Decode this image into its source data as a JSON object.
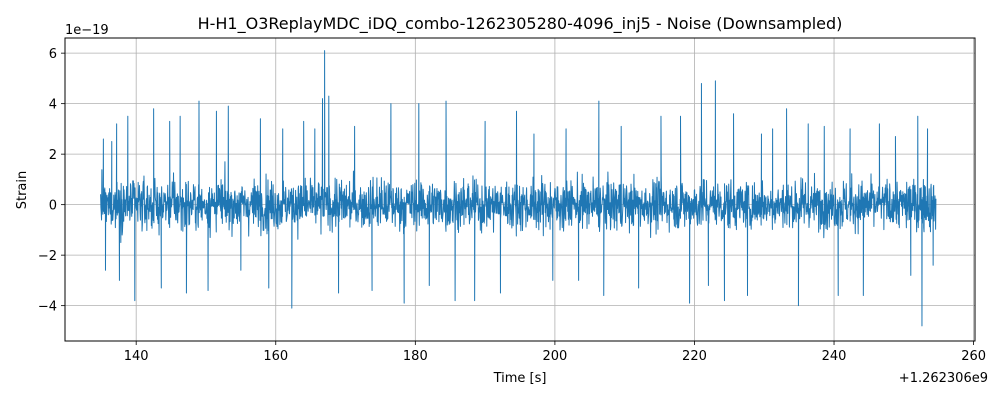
{
  "chart_data": {
    "type": "line",
    "title": "H-H1_O3ReplayMDC_iDQ_combo-1262305280-4096_inj5 - Noise (Downsampled)",
    "xlabel": "Time [s]",
    "ylabel": "Strain",
    "x_offset_label": "+1.262306e9",
    "y_scale_label": "1e−19",
    "xlim": [
      129.8,
      260.2
    ],
    "ylim": [
      -5.4,
      6.6
    ],
    "x_ticks": [
      140,
      160,
      180,
      200,
      220,
      240,
      260
    ],
    "x_tick_labels": [
      "140",
      "160",
      "180",
      "200",
      "220",
      "240",
      "260"
    ],
    "y_ticks": [
      -4,
      -2,
      0,
      2,
      4,
      6
    ],
    "y_tick_labels": [
      "−4",
      "−2",
      "0",
      "2",
      "4",
      "6"
    ],
    "grid": true,
    "series": [
      {
        "color": "#1f77b4",
        "x_start": 134.9,
        "x_end": 254.6,
        "typical_envelope": 1.5,
        "spikes": [
          {
            "x": 135.3,
            "y": 2.6
          },
          {
            "x": 135.6,
            "y": -2.6
          },
          {
            "x": 136.5,
            "y": 2.5
          },
          {
            "x": 137.2,
            "y": 3.2
          },
          {
            "x": 137.6,
            "y": -3.0
          },
          {
            "x": 138.8,
            "y": 3.5
          },
          {
            "x": 139.8,
            "y": -3.8
          },
          {
            "x": 142.5,
            "y": 3.8
          },
          {
            "x": 143.6,
            "y": -3.3
          },
          {
            "x": 144.8,
            "y": 3.3
          },
          {
            "x": 146.3,
            "y": 3.5
          },
          {
            "x": 147.2,
            "y": -3.5
          },
          {
            "x": 149.0,
            "y": 4.1
          },
          {
            "x": 150.3,
            "y": -3.4
          },
          {
            "x": 151.5,
            "y": 3.7
          },
          {
            "x": 153.2,
            "y": 3.9
          },
          {
            "x": 155.0,
            "y": -2.6
          },
          {
            "x": 157.8,
            "y": 3.4
          },
          {
            "x": 159.0,
            "y": -3.3
          },
          {
            "x": 161.0,
            "y": 3.0
          },
          {
            "x": 162.3,
            "y": -4.1
          },
          {
            "x": 164.0,
            "y": 3.3
          },
          {
            "x": 165.6,
            "y": 3.0
          },
          {
            "x": 166.7,
            "y": 4.2
          },
          {
            "x": 167.0,
            "y": 6.1
          },
          {
            "x": 167.6,
            "y": 4.3
          },
          {
            "x": 169.0,
            "y": -3.5
          },
          {
            "x": 171.3,
            "y": 3.1
          },
          {
            "x": 173.8,
            "y": -3.4
          },
          {
            "x": 176.5,
            "y": 4.0
          },
          {
            "x": 178.4,
            "y": -3.9
          },
          {
            "x": 180.5,
            "y": 4.0
          },
          {
            "x": 182.0,
            "y": -3.2
          },
          {
            "x": 184.4,
            "y": 4.1
          },
          {
            "x": 185.7,
            "y": -3.8
          },
          {
            "x": 188.5,
            "y": -3.8
          },
          {
            "x": 190.0,
            "y": 3.3
          },
          {
            "x": 192.2,
            "y": -3.5
          },
          {
            "x": 194.5,
            "y": 3.7
          },
          {
            "x": 197.0,
            "y": 2.8
          },
          {
            "x": 199.7,
            "y": -3.0
          },
          {
            "x": 201.6,
            "y": 3.0
          },
          {
            "x": 203.4,
            "y": -3.0
          },
          {
            "x": 206.3,
            "y": 4.1
          },
          {
            "x": 207.0,
            "y": -3.6
          },
          {
            "x": 209.5,
            "y": 3.1
          },
          {
            "x": 212.0,
            "y": -3.3
          },
          {
            "x": 215.2,
            "y": 3.5
          },
          {
            "x": 218.0,
            "y": 3.5
          },
          {
            "x": 219.3,
            "y": -3.9
          },
          {
            "x": 221.0,
            "y": 4.8
          },
          {
            "x": 222.0,
            "y": -3.2
          },
          {
            "x": 223.0,
            "y": 4.9
          },
          {
            "x": 224.3,
            "y": -3.8
          },
          {
            "x": 225.6,
            "y": 3.6
          },
          {
            "x": 227.6,
            "y": -3.6
          },
          {
            "x": 229.6,
            "y": 2.8
          },
          {
            "x": 231.2,
            "y": 3.0
          },
          {
            "x": 233.2,
            "y": 3.8
          },
          {
            "x": 234.9,
            "y": -4.0
          },
          {
            "x": 236.3,
            "y": 3.2
          },
          {
            "x": 238.6,
            "y": 3.1
          },
          {
            "x": 240.6,
            "y": -3.6
          },
          {
            "x": 242.3,
            "y": 3.0
          },
          {
            "x": 244.2,
            "y": -3.6
          },
          {
            "x": 246.5,
            "y": 3.2
          },
          {
            "x": 248.8,
            "y": 2.7
          },
          {
            "x": 251.0,
            "y": -2.8
          },
          {
            "x": 252.0,
            "y": 3.5
          },
          {
            "x": 252.6,
            "y": -4.8
          },
          {
            "x": 253.4,
            "y": 3.0
          },
          {
            "x": 254.2,
            "y": -2.4
          }
        ]
      }
    ]
  }
}
